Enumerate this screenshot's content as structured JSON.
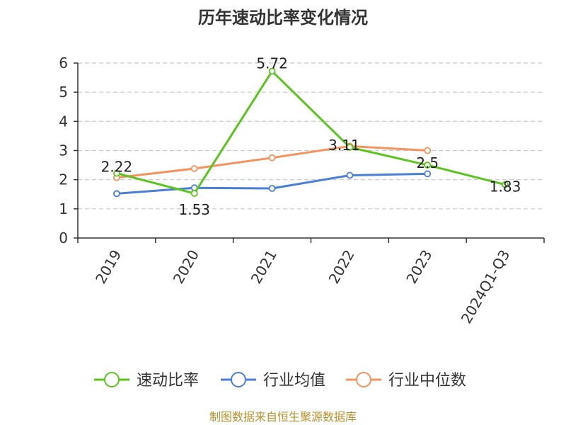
{
  "chart_data": {
    "type": "line",
    "title": "历年速动比率变化情况",
    "categories": [
      "2019",
      "2020",
      "2021",
      "2022",
      "2023",
      "2024Q1-Q3"
    ],
    "ylim": [
      0,
      6
    ],
    "yticks": [
      0,
      1,
      2,
      3,
      4,
      5,
      6
    ],
    "grid": true,
    "legend_position": "bottom",
    "series": [
      {
        "name": "速动比率",
        "color": "#5cc41e",
        "values": [
          2.22,
          1.53,
          5.72,
          3.11,
          2.5,
          1.83
        ],
        "labels": [
          "2.22",
          "1.53",
          "5.72",
          "3.11",
          "2.5",
          "1.83"
        ]
      },
      {
        "name": "行业均值",
        "color": "#4a7fd8",
        "values": [
          1.52,
          1.72,
          1.7,
          2.15,
          2.2,
          null
        ]
      },
      {
        "name": "行业中位数",
        "color": "#f5935f",
        "values": [
          2.07,
          2.38,
          2.75,
          3.15,
          3.0,
          null
        ]
      }
    ]
  },
  "source": "制图数据来自恒生聚源数据库"
}
